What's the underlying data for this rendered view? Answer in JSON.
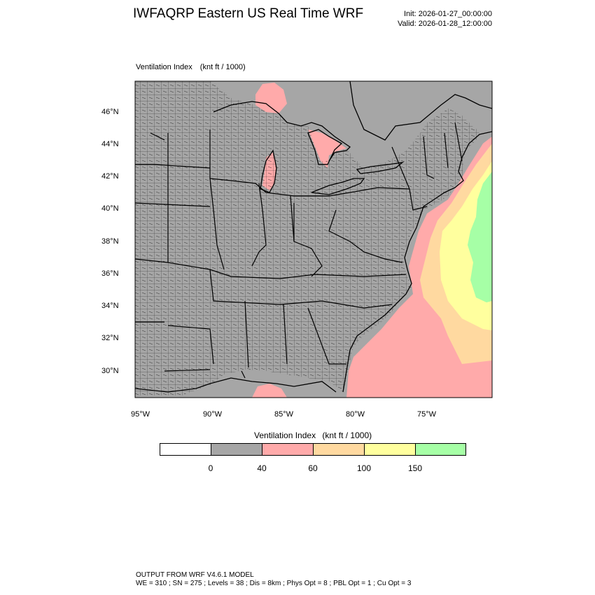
{
  "header": {
    "title": "IWFAQRP Eastern US Real Time WRF",
    "init": "Init: 2026-01-27_00:00:00",
    "valid": "Valid: 2026-01-28_12:00:00"
  },
  "map": {
    "field_name": "Ventilation Index",
    "field_units": "(knt ft / 1000)",
    "lat_labels": [
      "46°N",
      "44°N",
      "42°N",
      "40°N",
      "38°N",
      "36°N",
      "34°N",
      "32°N",
      "30°N"
    ],
    "lon_labels": [
      "95°W",
      "90°W",
      "85°W",
      "80°W",
      "75°W"
    ]
  },
  "colorbar": {
    "title": "Ventilation Index",
    "units": "(knt ft / 1000)",
    "colors": [
      "#ffffff",
      "#a6a6a6",
      "#ffaaaa",
      "#ffd9a0",
      "#ffff9e",
      "#a6ffa6"
    ],
    "tick_labels": [
      "0",
      "40",
      "60",
      "100",
      "150"
    ]
  },
  "footer": {
    "line1": "OUTPUT FROM WRF V4.6.1 MODEL",
    "line2": "WE = 310 ; SN = 275 ; Levels = 38 ; Dis = 8km ; Phys Opt = 8 ; PBL Opt = 1 ; Cu Opt = 3"
  }
}
